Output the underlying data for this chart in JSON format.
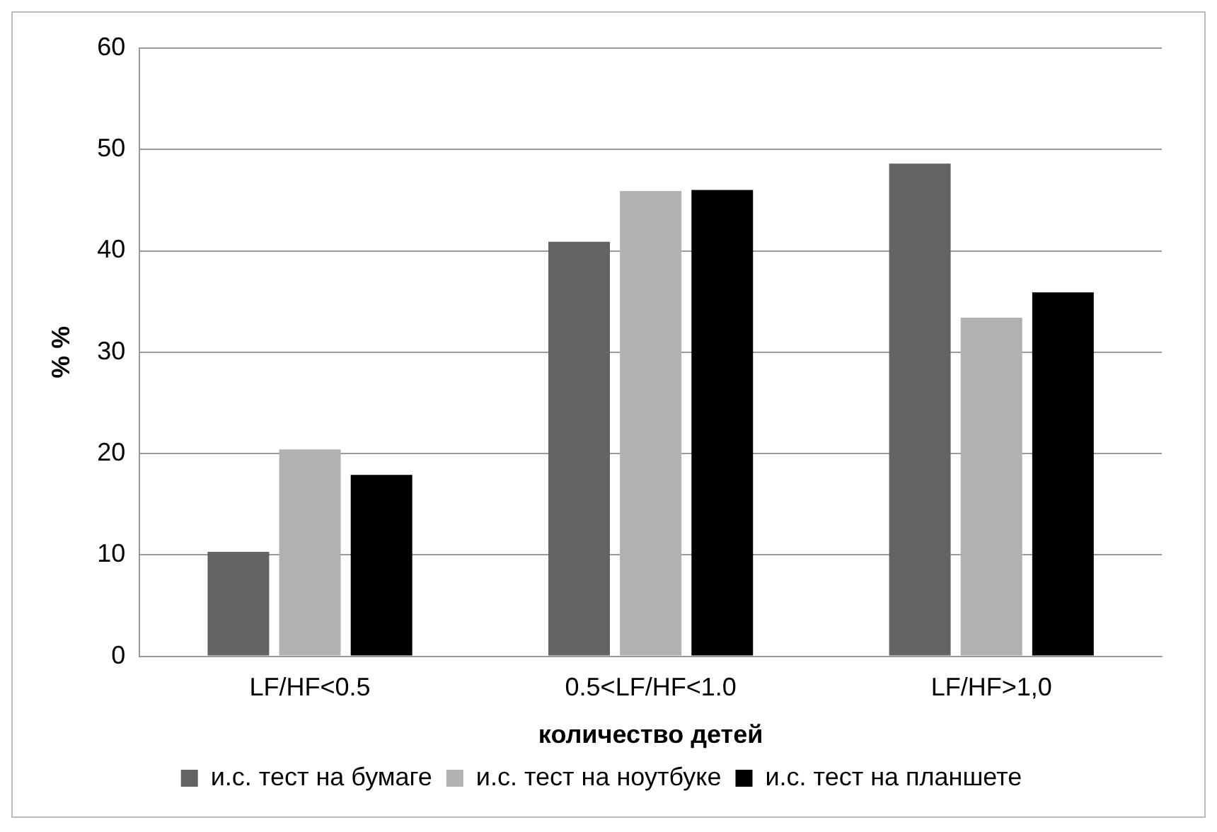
{
  "chart_data": {
    "type": "bar",
    "xlabel": "количество детей",
    "ylabel": "% %",
    "categories": [
      "LF/HF<0.5",
      "0.5<LF/HF<1.0",
      "LF/HF>1,0"
    ],
    "series": [
      {
        "name": "и.с. тест на бумаге",
        "color": "#636363",
        "values": [
          10.3,
          40.9,
          48.6
        ]
      },
      {
        "name": "и.с. тест на ноутбуке",
        "color": "#b1b1b1",
        "values": [
          20.4,
          45.9,
          33.4
        ]
      },
      {
        "name": "и.с. тест на планшете",
        "color": "#000000",
        "values": [
          17.9,
          46.0,
          35.9
        ]
      }
    ],
    "ylim": [
      0,
      60
    ],
    "yticks": [
      0,
      10,
      20,
      30,
      40,
      50,
      60
    ],
    "grid": "y",
    "legend": "bottom"
  }
}
